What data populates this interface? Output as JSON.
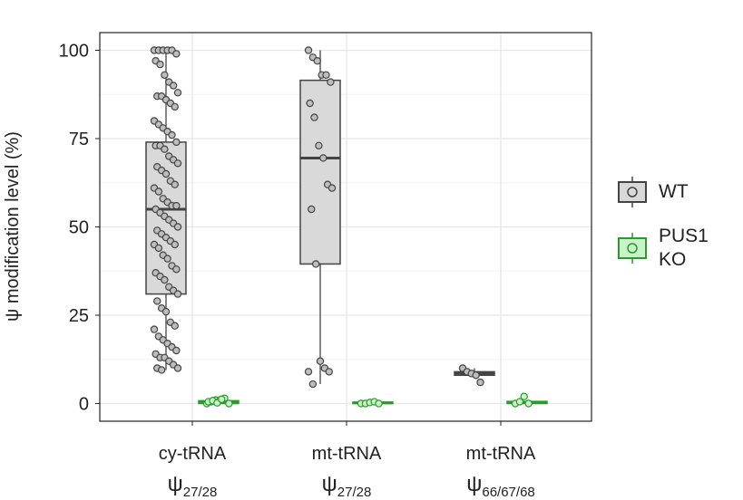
{
  "chart_data": {
    "type": "box",
    "y_label": "ψ modification level (%)",
    "categories": [
      {
        "name": "cy-tRNA",
        "symbol": "ψ",
        "sub": "27/28"
      },
      {
        "name": "mt-tRNA",
        "symbol": "ψ",
        "sub": "27/28"
      },
      {
        "name": "mt-tRNA",
        "symbol": "ψ",
        "sub": "66/67/68"
      }
    ],
    "ylim": [
      -5,
      105
    ],
    "yticks": [
      0,
      25,
      50,
      75,
      100
    ],
    "grid": true,
    "legend": "right",
    "series": [
      {
        "name": "WT",
        "color": "#444444",
        "fill": "#d9d9d9",
        "boxes": [
          {
            "min": 9.5,
            "q1": 31,
            "median": 55,
            "q3": 74,
            "max": 100
          },
          {
            "min": 5.5,
            "q1": 39.5,
            "median": 69.5,
            "q3": 91.5,
            "max": 100
          },
          {
            "min": 8,
            "q1": 8,
            "median": 8.5,
            "q3": 9,
            "max": 10
          }
        ],
        "points": [
          [
            100,
            100,
            100,
            100,
            100,
            99,
            97,
            96,
            93,
            91,
            90,
            88,
            87,
            87,
            86,
            85,
            84,
            80,
            79,
            78,
            77,
            76,
            74,
            73,
            73,
            72,
            70,
            69,
            68,
            67,
            66,
            65,
            63,
            62,
            61,
            60,
            58,
            57,
            56,
            56,
            55,
            54,
            53,
            52,
            51,
            50,
            49,
            48,
            47,
            46,
            45,
            45,
            44,
            42,
            41,
            39,
            38,
            37,
            36,
            35,
            33,
            32,
            31,
            29,
            27,
            26,
            23,
            22,
            21,
            19,
            18,
            17,
            16,
            15,
            14,
            13,
            13,
            12,
            11,
            10,
            10,
            9.5
          ],
          [
            100,
            98,
            97,
            93,
            93,
            91,
            85,
            81,
            73,
            69.5,
            62,
            61,
            55,
            39.5,
            12,
            10,
            9,
            9,
            5.5
          ],
          [
            10,
            9,
            8.5,
            8,
            6
          ]
        ]
      },
      {
        "name": "PUS1 KO",
        "color": "#2a9a2a",
        "fill": "#c8f2c8",
        "boxes": [
          {
            "min": 0,
            "q1": 0,
            "median": 0.3,
            "q3": 0.8,
            "max": 1.5
          },
          {
            "min": 0,
            "q1": 0,
            "median": 0.2,
            "q3": 0.4,
            "max": 0.6
          },
          {
            "min": 0,
            "q1": 0,
            "median": 0.3,
            "q3": 0.6,
            "max": 0.8
          }
        ],
        "points": [
          [
            0,
            0.5,
            1,
            1,
            1.5,
            0,
            0.5,
            0.8,
            0.2,
            1.2
          ],
          [
            0,
            0,
            0.3,
            0.5,
            0
          ],
          [
            0,
            0.5,
            2,
            0
          ]
        ]
      }
    ]
  }
}
